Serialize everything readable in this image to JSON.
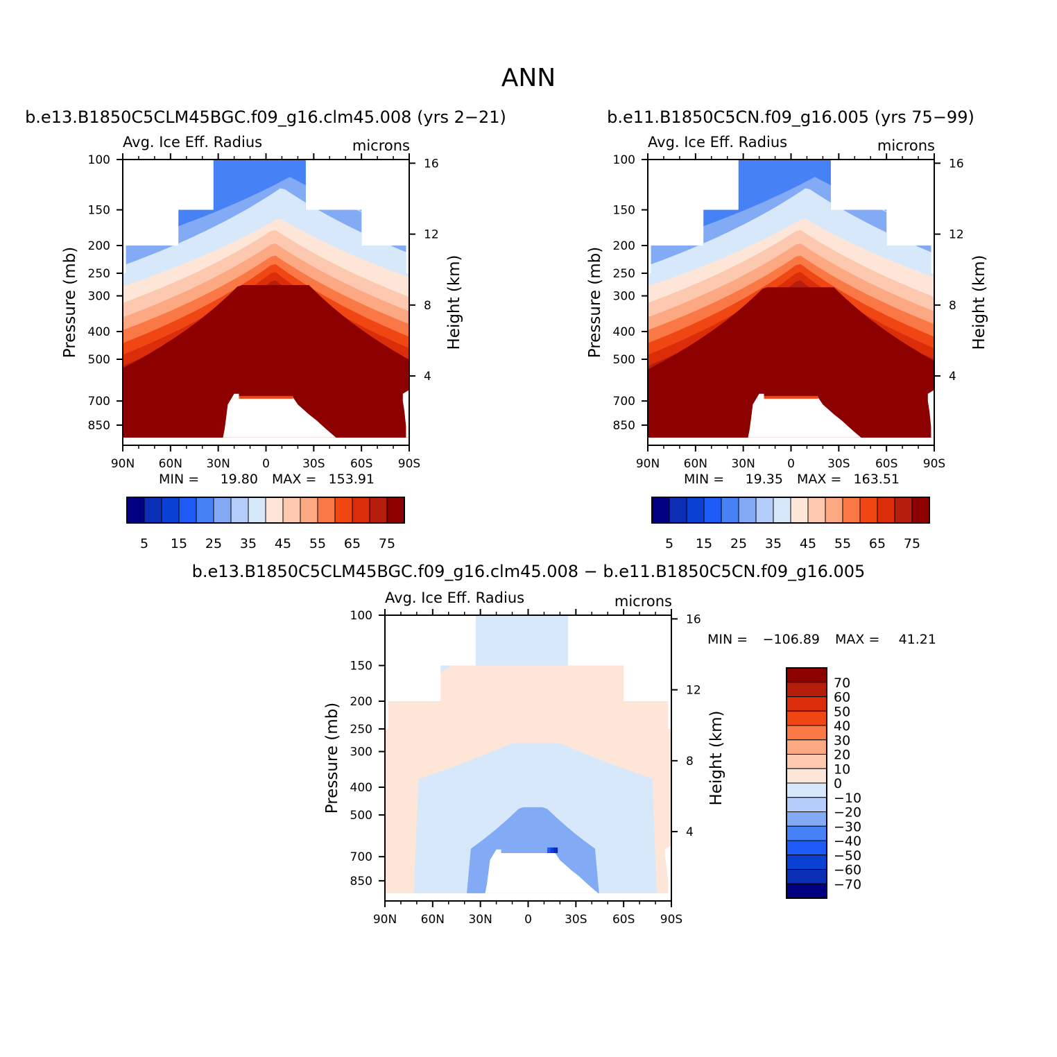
{
  "figure": {
    "title": "ANN"
  },
  "colors": {
    "abs_fills": [
      "#000080",
      "#0a2fb4",
      "#0a41d2",
      "#1e5af5",
      "#4682f5",
      "#82aaf5",
      "#b4cdfa",
      "#d7e8fa",
      "#fde6d7",
      "#fcc8af",
      "#fca882",
      "#fa7846",
      "#f04614",
      "#dc2d0a",
      "#b41e0a",
      "#8c0000"
    ],
    "diff_fills": [
      "#000080",
      "#0a2fb4",
      "#0a41d2",
      "#1e5af5",
      "#4682f5",
      "#82aaf5",
      "#b4cdfa",
      "#d7e8fa",
      "#fde6d7",
      "#fcc8af",
      "#fca882",
      "#fa7846",
      "#f04614",
      "#dc2d0a",
      "#b41e0a",
      "#8c0000"
    ]
  },
  "panels": [
    {
      "title": "b.e13.B1850C5CLM45BGC.f09_g16.clm45.008 (yrs 2−21)",
      "left_label": "Avg. Ice Eff. Radius",
      "right_label": "microns",
      "ylabel": "Pressure (mb)",
      "y2label": "Height (km)",
      "min_label": "MIN =",
      "min_value": "19.80",
      "max_label": "MAX =",
      "max_value": "153.91"
    },
    {
      "title": "b.e11.B1850C5CN.f09_g16.005 (yrs 75−99)",
      "left_label": "Avg. Ice Eff. Radius",
      "right_label": "microns",
      "ylabel": "Pressure (mb)",
      "y2label": "Height (km)",
      "min_label": "MIN =",
      "min_value": "19.35",
      "max_label": "MAX =",
      "max_value": "163.51"
    },
    {
      "title": "b.e13.B1850C5CLM45BGC.f09_g16.clm45.008 − b.e11.B1850C5CN.f09_g16.005",
      "left_label": "Avg. Ice Eff. Radius",
      "right_label": "microns",
      "ylabel": "Pressure (mb)",
      "y2label": "Height (km)",
      "min_label": "MIN =",
      "min_value": "−106.89",
      "max_label": "MAX =",
      "max_value": "41.21"
    }
  ],
  "chart_data": {
    "type": "heatmap",
    "x_ticks": [
      "90N",
      "60N",
      "30N",
      "0",
      "30S",
      "60S",
      "90S"
    ],
    "x_values": [
      90,
      60,
      30,
      0,
      -30,
      -60,
      -90
    ],
    "y_ticks": [
      "100",
      "150",
      "200",
      "250",
      "300",
      "400",
      "500",
      "700",
      "850"
    ],
    "y_values": [
      100,
      150,
      200,
      250,
      300,
      400,
      500,
      700,
      850
    ],
    "ylim": [
      100,
      1000
    ],
    "y_scale": "log",
    "y2_ticks": [
      "16",
      "12",
      "8",
      "4"
    ],
    "y2_values": [
      16,
      12,
      8,
      4
    ],
    "abs_colorbar_labels": [
      "5",
      "15",
      "25",
      "35",
      "45",
      "55",
      "65",
      "75"
    ],
    "abs_levels": [
      0,
      5,
      10,
      15,
      20,
      25,
      30,
      35,
      40,
      45,
      50,
      55,
      60,
      65,
      70,
      75
    ],
    "diff_colorbar_labels": [
      "70",
      "60",
      "50",
      "40",
      "30",
      "20",
      "10",
      "0",
      "−10",
      "−20",
      "−30",
      "−40",
      "−50",
      "−60",
      "−70"
    ],
    "diff_levels": [
      70,
      60,
      50,
      40,
      30,
      20,
      10,
      0,
      -10,
      -20,
      -30,
      -40,
      -50,
      -60,
      -70
    ]
  }
}
